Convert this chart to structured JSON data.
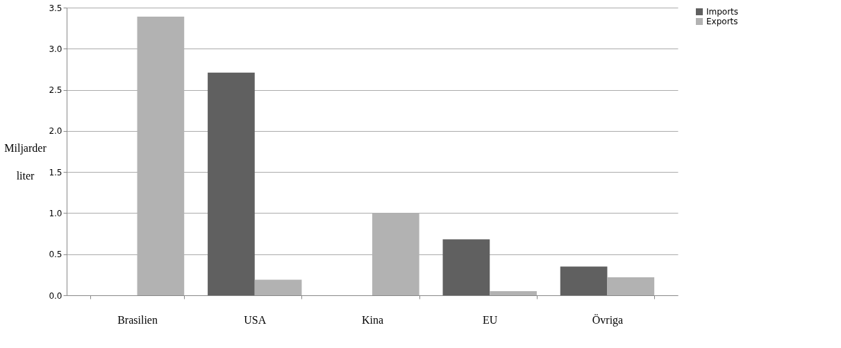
{
  "chart_data": {
    "type": "bar",
    "ylabel": "Miljarder liter",
    "categories": [
      "Brasilien",
      "USA",
      "Kina",
      "EU",
      "Övriga"
    ],
    "series": [
      {
        "name": "Imports",
        "color": "#606060",
        "values": [
          null,
          2.71,
          null,
          0.68,
          0.35
        ]
      },
      {
        "name": "Exports",
        "color": "#b2b2b2",
        "values": [
          3.39,
          0.19,
          1.0,
          0.05,
          0.22
        ]
      }
    ],
    "ylim": [
      0,
      3.5
    ],
    "yticks": [
      {
        "value": 0,
        "label": "0.0"
      },
      0.5,
      {
        "value": 1,
        "label": "1.0"
      },
      1.5,
      {
        "value": 2,
        "label": "2.0"
      },
      2.5,
      {
        "value": 3,
        "label": "3.0"
      },
      3.5
    ],
    "grid": "y",
    "legend": "right"
  }
}
